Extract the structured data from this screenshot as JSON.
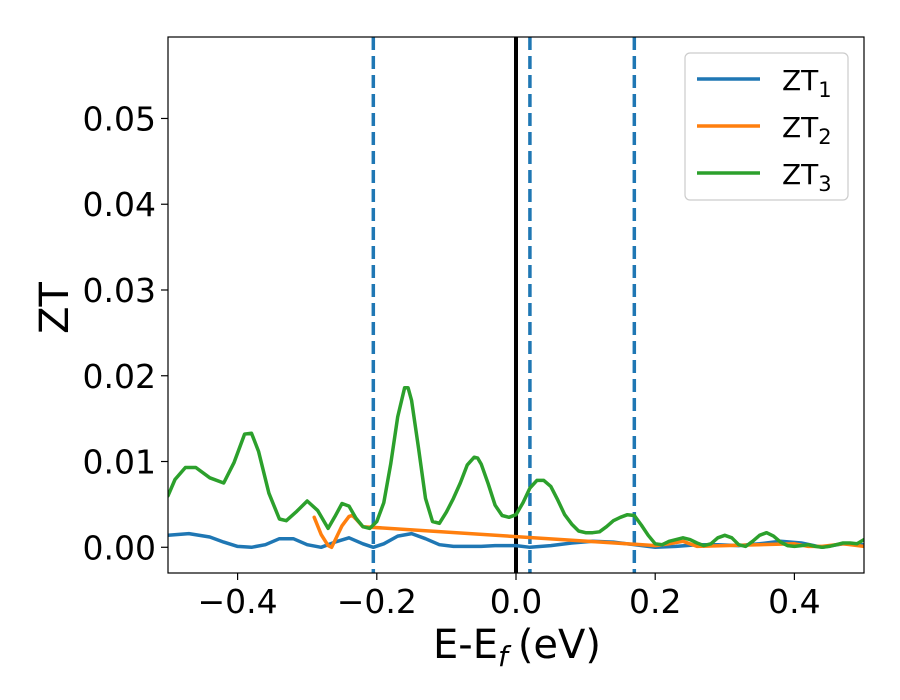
{
  "chart_data": {
    "type": "line",
    "xlabel": "E-E",
    "xlabel_sub": "f",
    "xlabel_unit": "(eV)",
    "ylabel": "ZT",
    "xlim": [
      -0.5,
      0.5
    ],
    "ylim": [
      -0.003,
      0.0595
    ],
    "xticks": [
      -0.4,
      -0.2,
      0.0,
      0.2,
      0.4
    ],
    "xtick_labels": [
      "−0.4",
      "−0.2",
      "0.0",
      "0.2",
      "0.4"
    ],
    "yticks": [
      0.0,
      0.01,
      0.02,
      0.03,
      0.04,
      0.05
    ],
    "ytick_labels": [
      "0.00",
      "0.01",
      "0.02",
      "0.03",
      "0.04",
      "0.05"
    ],
    "legend_position": "top-right",
    "grid": false,
    "vertical_lines": [
      {
        "x": 0.0,
        "style": "solid",
        "color": "#000000"
      },
      {
        "x": -0.205,
        "style": "dashed",
        "color": "#1f77b4"
      },
      {
        "x": 0.02,
        "style": "dashed",
        "color": "#1f77b4"
      },
      {
        "x": 0.17,
        "style": "dashed",
        "color": "#1f77b4"
      }
    ],
    "series": [
      {
        "name": "ZT",
        "subscript": "1",
        "color": "#1f77b4",
        "x": [
          -0.5,
          -0.47,
          -0.44,
          -0.42,
          -0.4,
          -0.38,
          -0.36,
          -0.34,
          -0.32,
          -0.3,
          -0.28,
          -0.26,
          -0.24,
          -0.22,
          -0.205,
          -0.19,
          -0.17,
          -0.15,
          -0.13,
          -0.11,
          -0.09,
          -0.07,
          -0.05,
          -0.03,
          -0.01,
          0.0,
          0.02,
          0.05,
          0.08,
          0.11,
          0.14,
          0.17,
          0.2,
          0.23,
          0.26,
          0.29,
          0.32,
          0.35,
          0.38,
          0.41,
          0.44,
          0.47,
          0.5
        ],
        "y": [
          0.0014,
          0.0016,
          0.0012,
          0.0006,
          0.0001,
          0.0,
          0.0003,
          0.001,
          0.001,
          0.0003,
          0.0,
          0.0006,
          0.0011,
          0.0004,
          0.0,
          0.0004,
          0.0013,
          0.0016,
          0.001,
          0.0003,
          0.0001,
          0.0001,
          0.0001,
          0.0002,
          0.0002,
          0.0002,
          0.0,
          0.0002,
          0.0005,
          0.0007,
          0.0006,
          0.0003,
          0.0,
          0.0001,
          0.0003,
          0.0003,
          0.0002,
          0.0004,
          0.0007,
          0.0005,
          0.0,
          0.0004,
          0.0003
        ]
      },
      {
        "name": "ZT",
        "subscript": "2",
        "color": "#ff7f0e",
        "x": [
          -0.29,
          -0.28,
          -0.27,
          -0.265,
          -0.26,
          -0.25,
          -0.24,
          -0.235,
          -0.23,
          -0.22,
          0.2,
          0.22,
          0.24,
          0.26,
          0.4,
          0.42,
          0.44,
          0.47,
          0.5
        ],
        "y": [
          0.0035,
          0.0015,
          0.0002,
          0.0,
          0.0008,
          0.0025,
          0.0036,
          0.0037,
          0.0033,
          0.0024,
          0.0002,
          0.0004,
          0.0007,
          0.0001,
          0.0004,
          0.0001,
          0.0001,
          0.0004,
          0.0001
        ]
      },
      {
        "name": "ZT",
        "subscript": "3",
        "color": "#2ca02c",
        "x": [
          -0.5,
          -0.49,
          -0.475,
          -0.46,
          -0.44,
          -0.42,
          -0.405,
          -0.39,
          -0.38,
          -0.37,
          -0.355,
          -0.34,
          -0.33,
          -0.315,
          -0.3,
          -0.285,
          -0.27,
          -0.26,
          -0.25,
          -0.24,
          -0.23,
          -0.22,
          -0.21,
          -0.2,
          -0.19,
          -0.18,
          -0.17,
          -0.16,
          -0.155,
          -0.15,
          -0.14,
          -0.13,
          -0.12,
          -0.11,
          -0.1,
          -0.09,
          -0.08,
          -0.07,
          -0.06,
          -0.055,
          -0.05,
          -0.04,
          -0.03,
          -0.02,
          -0.01,
          0.0,
          0.01,
          0.02,
          0.03,
          0.04,
          0.05,
          0.06,
          0.07,
          0.08,
          0.09,
          0.1,
          0.11,
          0.12,
          0.13,
          0.14,
          0.15,
          0.16,
          0.17,
          0.18,
          0.19,
          0.2,
          0.21,
          0.22,
          0.23,
          0.24,
          0.25,
          0.26,
          0.27,
          0.28,
          0.29,
          0.3,
          0.31,
          0.32,
          0.33,
          0.34,
          0.35,
          0.36,
          0.37,
          0.38,
          0.39,
          0.4,
          0.41,
          0.42,
          0.43,
          0.44,
          0.45,
          0.46,
          0.47,
          0.48,
          0.49,
          0.5
        ],
        "y": [
          0.006,
          0.0079,
          0.0093,
          0.0093,
          0.0081,
          0.0075,
          0.0099,
          0.0132,
          0.0133,
          0.0112,
          0.0063,
          0.0033,
          0.0031,
          0.0042,
          0.0054,
          0.0043,
          0.0022,
          0.0036,
          0.0051,
          0.0048,
          0.0034,
          0.0024,
          0.0022,
          0.003,
          0.0052,
          0.0097,
          0.0152,
          0.0186,
          0.0186,
          0.0171,
          0.0115,
          0.0057,
          0.003,
          0.0028,
          0.0041,
          0.0057,
          0.0075,
          0.0096,
          0.0105,
          0.0104,
          0.0097,
          0.0074,
          0.0049,
          0.0037,
          0.0035,
          0.0038,
          0.0052,
          0.0069,
          0.0078,
          0.0078,
          0.0071,
          0.0055,
          0.0038,
          0.0027,
          0.0019,
          0.0017,
          0.0017,
          0.0018,
          0.0024,
          0.0031,
          0.0035,
          0.0038,
          0.0037,
          0.0026,
          0.0014,
          0.0004,
          0.0003,
          0.0007,
          0.0009,
          0.0011,
          0.0009,
          0.0005,
          0.0002,
          0.0004,
          0.0011,
          0.0014,
          0.0011,
          0.0003,
          0.0001,
          0.0007,
          0.0014,
          0.0017,
          0.0013,
          0.0006,
          0.0002,
          0.0001,
          0.0002,
          0.0003,
          0.0001,
          0.0,
          0.0001,
          0.0003,
          0.0005,
          0.0005,
          0.0004,
          0.0009
        ]
      }
    ]
  }
}
